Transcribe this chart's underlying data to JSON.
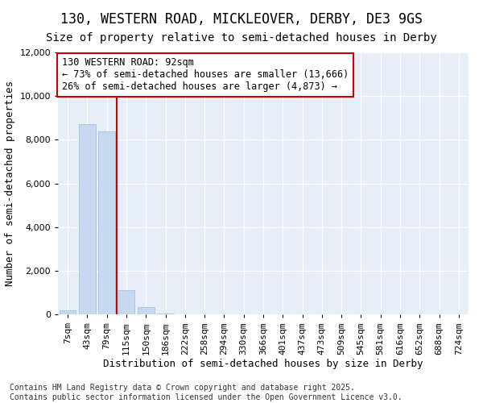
{
  "title_line1": "130, WESTERN ROAD, MICKLEOVER, DERBY, DE3 9GS",
  "title_line2": "Size of property relative to semi-detached houses in Derby",
  "xlabel": "Distribution of semi-detached houses by size in Derby",
  "ylabel": "Number of semi-detached properties",
  "footer_line1": "Contains HM Land Registry data © Crown copyright and database right 2025.",
  "footer_line2": "Contains public sector information licensed under the Open Government Licence v3.0.",
  "categories": [
    "7sqm",
    "43sqm",
    "79sqm",
    "115sqm",
    "150sqm",
    "186sqm",
    "222sqm",
    "258sqm",
    "294sqm",
    "330sqm",
    "366sqm",
    "401sqm",
    "437sqm",
    "473sqm",
    "509sqm",
    "545sqm",
    "581sqm",
    "616sqm",
    "652sqm",
    "688sqm",
    "724sqm"
  ],
  "values": [
    200,
    8700,
    8400,
    1100,
    350,
    50,
    0,
    0,
    0,
    0,
    0,
    0,
    0,
    0,
    0,
    0,
    0,
    0,
    0,
    0,
    0
  ],
  "bar_color": "#c6d9f0",
  "bar_edge_color": "#9abcd6",
  "vline_x": 2.5,
  "vline_color": "#cc0000",
  "annotation_text_line1": "130 WESTERN ROAD: 92sqm",
  "annotation_text_line2": "← 73% of semi-detached houses are smaller (13,666)",
  "annotation_text_line3": "26% of semi-detached houses are larger (4,873) →",
  "ylim": [
    0,
    12000
  ],
  "yticks": [
    0,
    2000,
    4000,
    6000,
    8000,
    10000,
    12000
  ],
  "background_color": "#ffffff",
  "plot_bg_color": "#e8eef8",
  "grid_color": "#ffffff",
  "title_fontsize": 12,
  "subtitle_fontsize": 10,
  "axis_label_fontsize": 9,
  "tick_fontsize": 8,
  "annotation_fontsize": 8.5,
  "footer_fontsize": 7
}
